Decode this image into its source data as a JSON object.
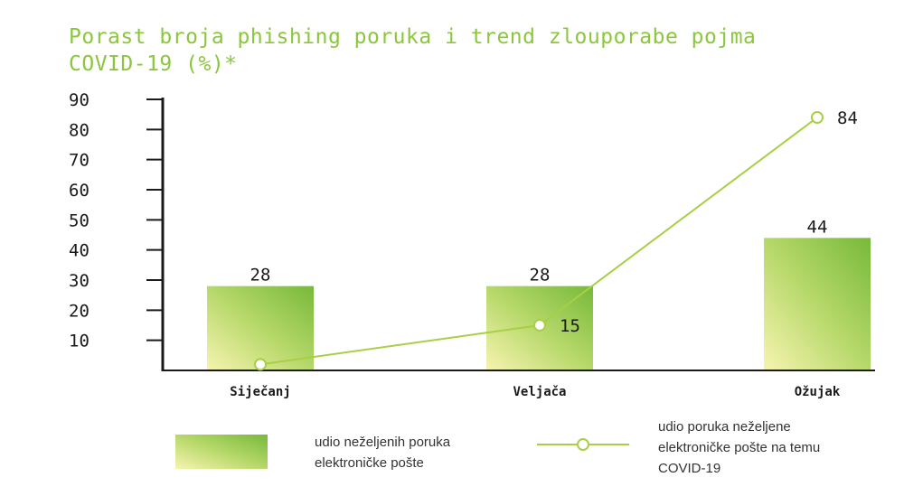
{
  "title": "Porast broja phishing poruka i trend zlouporabe pojma COVID-19 (%)*",
  "colors": {
    "title": "#8cc63f",
    "bar_light": "#f7f4b0",
    "bar_dark": "#77b93a",
    "line": "#a8cf45",
    "axis": "#1a1a1a"
  },
  "chart_data": {
    "type": "bar",
    "title": "Porast broja phishing poruka i trend zlouporabe pojma COVID-19 (%)*",
    "categories": [
      "Siječanj",
      "Veljača",
      "Ožujak"
    ],
    "yticks": [
      10,
      20,
      30,
      40,
      50,
      60,
      70,
      80,
      90
    ],
    "ylim": [
      0,
      90
    ],
    "grid": false,
    "legend_position": "bottom",
    "series": [
      {
        "name": "udio neželjenih poruka elektroničke pošte",
        "type": "bar",
        "values": [
          28,
          28,
          44
        ],
        "labels": [
          "28",
          "28",
          "44"
        ]
      },
      {
        "name": "udio poruka neželjene elektroničke pošte na temu COVID-19",
        "type": "line",
        "values": [
          2,
          15,
          84
        ],
        "labels": [
          "",
          "15",
          "84"
        ]
      }
    ]
  },
  "legend": {
    "bar_label": "udio neželjenih poruka elektroničke pošte",
    "bar_label_lines": [
      "udio neželjenih poruka",
      "elektroničke pošte"
    ],
    "line_label_lines": [
      "udio poruka neželjene",
      "elektroničke pošte na temu",
      "COVID-19"
    ]
  }
}
